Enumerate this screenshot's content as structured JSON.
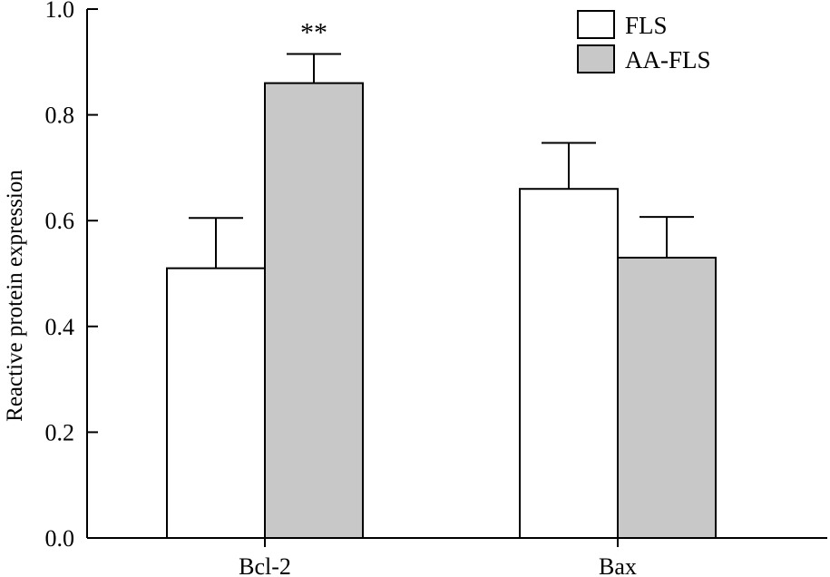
{
  "chart_data": {
    "type": "bar",
    "title": "",
    "xlabel": "",
    "ylabel": "Reactive protein expression",
    "ylim": [
      0,
      1.0
    ],
    "yticks": [
      "0.0",
      "0.2",
      "0.4",
      "0.6",
      "0.8",
      "1.0"
    ],
    "categories": [
      "Bcl-2",
      "Bax"
    ],
    "series": [
      {
        "name": "FLS",
        "values": [
          0.51,
          0.66
        ],
        "errors": [
          0.095,
          0.087
        ],
        "color": "#ffffff"
      },
      {
        "name": "AA-FLS",
        "values": [
          0.86,
          0.53
        ],
        "errors": [
          0.055,
          0.077
        ],
        "color": "#c8c8c8"
      }
    ],
    "annotations": [
      {
        "category": "Bcl-2",
        "series": "AA-FLS",
        "text": "**"
      }
    ],
    "legend_position": "top-right",
    "grid": false
  }
}
